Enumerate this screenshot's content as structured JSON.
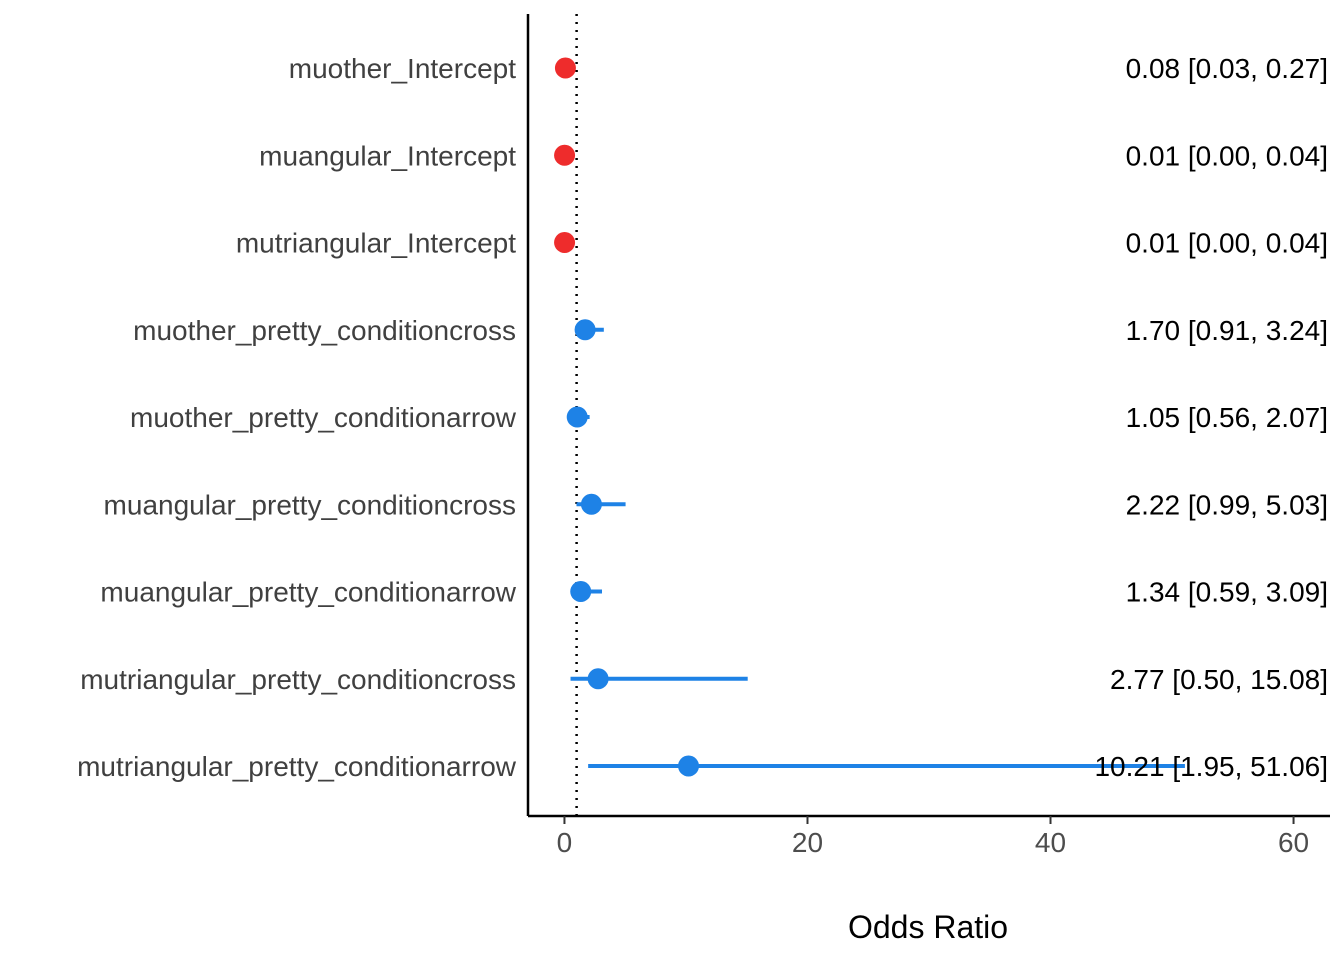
{
  "chart_data": {
    "type": "scatter",
    "subtype": "forest-plot",
    "title": "",
    "xlabel": "Odds Ratio",
    "ylabel": "",
    "xlim": [
      -3,
      63
    ],
    "xticks": [
      0,
      20,
      40,
      60
    ],
    "reference_line": 1,
    "grid": false,
    "legend": "none",
    "colors": {
      "negative": "#ee2c2c",
      "positive": "#1e82e6",
      "reference_line": "#000000"
    },
    "rows": [
      {
        "term": "muother_Intercept",
        "estimate": 0.08,
        "low": 0.03,
        "high": 0.27,
        "label": "0.08 [0.03, 0.27]",
        "group": "negative"
      },
      {
        "term": "muangular_Intercept",
        "estimate": 0.01,
        "low": 0.0,
        "high": 0.04,
        "label": "0.01 [0.00, 0.04]",
        "group": "negative"
      },
      {
        "term": "mutriangular_Intercept",
        "estimate": 0.01,
        "low": 0.0,
        "high": 0.04,
        "label": "0.01 [0.00, 0.04]",
        "group": "negative"
      },
      {
        "term": "muother_pretty_conditioncross",
        "estimate": 1.7,
        "low": 0.91,
        "high": 3.24,
        "label": "1.70 [0.91, 3.24]",
        "group": "positive"
      },
      {
        "term": "muother_pretty_conditionarrow",
        "estimate": 1.05,
        "low": 0.56,
        "high": 2.07,
        "label": "1.05 [0.56, 2.07]",
        "group": "positive"
      },
      {
        "term": "muangular_pretty_conditioncross",
        "estimate": 2.22,
        "low": 0.99,
        "high": 5.03,
        "label": "2.22 [0.99, 5.03]",
        "group": "positive"
      },
      {
        "term": "muangular_pretty_conditionarrow",
        "estimate": 1.34,
        "low": 0.59,
        "high": 3.09,
        "label": "1.34 [0.59, 3.09]",
        "group": "positive"
      },
      {
        "term": "mutriangular_pretty_conditioncross",
        "estimate": 2.77,
        "low": 0.5,
        "high": 15.08,
        "label": "2.77 [0.50, 15.08]",
        "group": "positive"
      },
      {
        "term": "mutriangular_pretty_conditionarrow",
        "estimate": 10.21,
        "low": 1.95,
        "high": 51.06,
        "label": "10.21 [1.95, 51.06]",
        "group": "positive"
      }
    ]
  }
}
